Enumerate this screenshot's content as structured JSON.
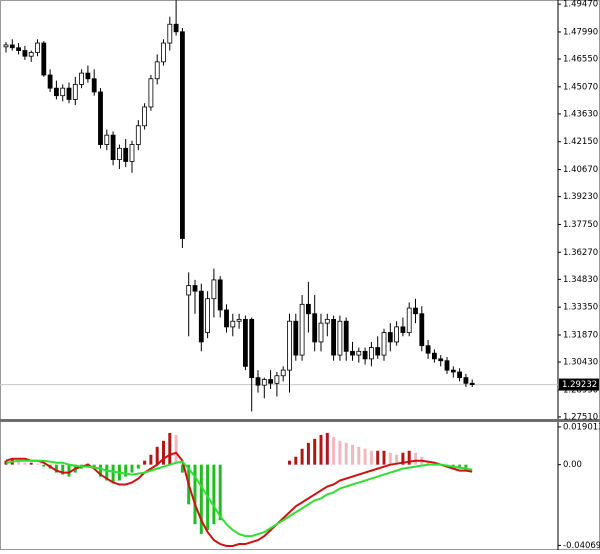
{
  "chart_data": [
    {
      "type": "candlestick",
      "open": [
        1.472,
        1.473,
        1.4715,
        1.47,
        1.467,
        1.469,
        1.474,
        1.457,
        1.45,
        1.446,
        1.45,
        1.444,
        1.452,
        1.458,
        1.455,
        1.448,
        1.42,
        1.425,
        1.412,
        1.418,
        1.411,
        1.42,
        1.43,
        1.44,
        1.455,
        1.464,
        1.474,
        1.484,
        1.48,
        1.34,
        1.345,
        1.342,
        1.32,
        1.338,
        1.348,
        1.332,
        1.323,
        1.326,
        1.327,
        1.327,
        1.296,
        1.292,
        1.295,
        1.293,
        1.297,
        1.3,
        1.326,
        1.308,
        1.335,
        1.33,
        1.315,
        1.325,
        1.327,
        1.308,
        1.326,
        1.31,
        1.308,
        1.31,
        1.306,
        1.312,
        1.308,
        1.32,
        1.315,
        1.323,
        1.32,
        1.333,
        1.33,
        1.313,
        1.309,
        1.306,
        1.305,
        1.3,
        1.299,
        1.296,
        1.293
      ],
      "high": [
        1.4745,
        1.476,
        1.474,
        1.4725,
        1.47,
        1.476,
        1.475,
        1.46,
        1.454,
        1.452,
        1.453,
        1.456,
        1.46,
        1.462,
        1.46,
        1.45,
        1.428,
        1.427,
        1.42,
        1.423,
        1.422,
        1.433,
        1.442,
        1.457,
        1.468,
        1.476,
        1.488,
        1.4968,
        1.482,
        1.352,
        1.348,
        1.346,
        1.342,
        1.354,
        1.35,
        1.335,
        1.33,
        1.33,
        1.329,
        1.328,
        1.3,
        1.296,
        1.3,
        1.299,
        1.302,
        1.33,
        1.33,
        1.34,
        1.347,
        1.34,
        1.33,
        1.33,
        1.329,
        1.329,
        1.328,
        1.315,
        1.312,
        1.312,
        1.315,
        1.318,
        1.322,
        1.325,
        1.326,
        1.328,
        1.336,
        1.338,
        1.334,
        1.316,
        1.311,
        1.308,
        1.307,
        1.302,
        1.301,
        1.298,
        1.295
      ],
      "low": [
        1.469,
        1.47,
        1.468,
        1.465,
        1.464,
        1.467,
        1.456,
        1.448,
        1.444,
        1.443,
        1.442,
        1.441,
        1.45,
        1.453,
        1.446,
        1.418,
        1.417,
        1.409,
        1.407,
        1.408,
        1.405,
        1.417,
        1.428,
        1.438,
        1.452,
        1.462,
        1.47,
        1.478,
        1.365,
        1.318,
        1.33,
        1.31,
        1.317,
        1.328,
        1.328,
        1.32,
        1.318,
        1.322,
        1.3,
        1.278,
        1.288,
        1.285,
        1.29,
        1.286,
        1.294,
        1.288,
        1.305,
        1.305,
        1.32,
        1.31,
        1.31,
        1.318,
        1.305,
        1.305,
        1.305,
        1.305,
        1.304,
        1.303,
        1.302,
        1.306,
        1.305,
        1.31,
        1.313,
        1.318,
        1.318,
        1.325,
        1.31,
        1.306,
        1.304,
        1.302,
        1.298,
        1.296,
        1.294,
        1.291,
        1.291
      ],
      "close": [
        1.473,
        1.4715,
        1.47,
        1.467,
        1.469,
        1.474,
        1.457,
        1.45,
        1.446,
        1.45,
        1.444,
        1.452,
        1.458,
        1.455,
        1.448,
        1.42,
        1.425,
        1.412,
        1.418,
        1.411,
        1.42,
        1.43,
        1.44,
        1.455,
        1.464,
        1.474,
        1.484,
        1.48,
        1.37,
        1.345,
        1.342,
        1.315,
        1.338,
        1.348,
        1.332,
        1.323,
        1.326,
        1.327,
        1.302,
        1.296,
        1.292,
        1.295,
        1.293,
        1.297,
        1.3,
        1.326,
        1.308,
        1.335,
        1.33,
        1.315,
        1.325,
        1.327,
        1.308,
        1.326,
        1.31,
        1.308,
        1.31,
        1.306,
        1.312,
        1.308,
        1.32,
        1.315,
        1.323,
        1.32,
        1.333,
        1.33,
        1.313,
        1.309,
        1.306,
        1.305,
        1.3,
        1.299,
        1.296,
        1.293,
        1.2923
      ],
      "up_color": "#ffffff",
      "down_color": "#000000",
      "edge_color": "#000000",
      "ylim": [
        1.274,
        1.4969
      ],
      "yticks": [
        {
          "value": 1.4947,
          "label": "1.49470"
        },
        {
          "value": 1.4799,
          "label": "1.47990"
        },
        {
          "value": 1.4655,
          "label": "1.46550"
        },
        {
          "value": 1.4507,
          "label": "1.45070"
        },
        {
          "value": 1.4363,
          "label": "1.43630"
        },
        {
          "value": 1.4215,
          "label": "1.42150"
        },
        {
          "value": 1.4067,
          "label": "1.40670"
        },
        {
          "value": 1.3923,
          "label": "1.39230"
        },
        {
          "value": 1.3775,
          "label": "1.37750"
        },
        {
          "value": 1.3627,
          "label": "1.36270"
        },
        {
          "value": 1.3483,
          "label": "1.34830"
        },
        {
          "value": 1.3335,
          "label": "1.33350"
        },
        {
          "value": 1.3187,
          "label": "1.31870"
        },
        {
          "value": 1.3043,
          "label": "1.30430"
        },
        {
          "value": 1.2895,
          "label": "1.28950"
        },
        {
          "value": 1.2751,
          "label": "1.27510"
        }
      ],
      "current_price": 1.29232,
      "current_price_color": "#c8c8c8"
    },
    {
      "type": "macd",
      "histogram": [
        0.002,
        0.003,
        0.002,
        0.001,
        0.001,
        0.0005,
        -0.001,
        -0.002,
        -0.004,
        -0.005,
        -0.006,
        -0.004,
        -0.002,
        0.0005,
        -0.002,
        -0.006,
        -0.008,
        -0.009,
        -0.008,
        -0.006,
        -0.004,
        -0.002,
        0.002,
        0.005,
        0.009,
        0.012,
        0.016,
        0.015,
        -0.004,
        -0.02,
        -0.03,
        -0.035,
        -0.033,
        -0.03,
        -0.028,
        null,
        null,
        null,
        null,
        null,
        null,
        null,
        null,
        null,
        null,
        0.002,
        0.004,
        0.008,
        0.011,
        0.013,
        0.015,
        0.016,
        0.014,
        0.012,
        0.011,
        0.01,
        0.009,
        0.008,
        0.007,
        0.007,
        0.007,
        0.006,
        0.005,
        0.006,
        0.007,
        0.006,
        0.004,
        0.002,
        0.001,
        null,
        -0.001,
        -0.001,
        -0.002,
        -0.003,
        null
      ],
      "histogram_colors": {
        "rising": "#b01818",
        "falling": "#f2b8c0",
        "negative": "#22bb22"
      },
      "series": [
        {
          "color": "#cc1111",
          "values": [
            0.002,
            0.003,
            0.003,
            0.003,
            0.002,
            0.002,
            0.001,
            -0.001,
            -0.003,
            -0.004,
            -0.004,
            -0.002,
            -0.001,
            0,
            -0.002,
            -0.005,
            -0.007,
            -0.009,
            -0.01,
            -0.01,
            -0.009,
            -0.007,
            -0.004,
            -0.002,
            0,
            0.003,
            0.005,
            0.006,
            0.002,
            -0.01,
            -0.02,
            -0.028,
            -0.034,
            -0.038,
            -0.04,
            -0.041,
            -0.041,
            -0.04,
            -0.04,
            -0.039,
            -0.038,
            -0.036,
            -0.033,
            -0.03,
            -0.027,
            -0.024,
            -0.021,
            -0.019,
            -0.017,
            -0.015,
            -0.013,
            -0.011,
            -0.01,
            -0.008,
            -0.007,
            -0.006,
            -0.005,
            -0.004,
            -0.003,
            -0.002,
            -0.001,
            0,
            0.0005,
            0.001,
            0.0015,
            0.002,
            0.002,
            0.0015,
            0.001,
            0,
            -0.001,
            -0.002,
            -0.003,
            -0.003,
            -0.0035
          ]
        },
        {
          "color": "#33dd33",
          "values": [
            0.001,
            0.0015,
            0.002,
            0.002,
            0.002,
            0.002,
            0.002,
            0.0015,
            0.001,
            0.001,
            0,
            -0.0005,
            -0.001,
            -0.001,
            -0.0015,
            -0.002,
            -0.003,
            -0.0035,
            -0.004,
            -0.0045,
            -0.005,
            -0.0045,
            -0.004,
            -0.003,
            -0.002,
            -0.001,
            0,
            0.001,
            0.0015,
            -0.002,
            -0.006,
            -0.011,
            -0.016,
            -0.021,
            -0.026,
            -0.03,
            -0.033,
            -0.035,
            -0.036,
            -0.036,
            -0.035,
            -0.034,
            -0.032,
            -0.03,
            -0.028,
            -0.026,
            -0.024,
            -0.022,
            -0.02,
            -0.018,
            -0.017,
            -0.015,
            -0.014,
            -0.012,
            -0.011,
            -0.01,
            -0.009,
            -0.008,
            -0.007,
            -0.006,
            -0.005,
            -0.004,
            -0.003,
            -0.002,
            -0.0015,
            -0.001,
            -0.0005,
            0,
            0,
            0,
            -0.0005,
            -0.001,
            -0.0015,
            -0.002,
            -0.0025
          ]
        }
      ],
      "ylim": [
        -0.0415,
        0.0205
      ],
      "yticks": [
        0.019013,
        {
          "value": 0,
          "label": "0.00"
        },
        -0.040694
      ]
    }
  ]
}
